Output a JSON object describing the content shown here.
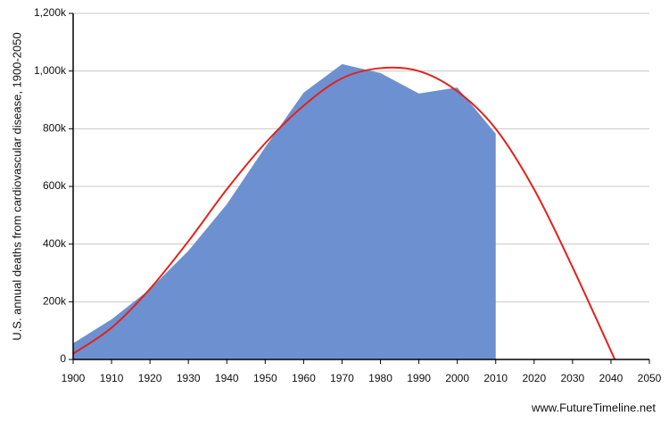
{
  "chart_data": {
    "type": "area",
    "ylabel": "U.S. annual deaths from cardiovascular disease, 1900-2050",
    "footer": "www.FutureTimeline.net",
    "xlim": [
      1900,
      2050
    ],
    "xticks": [
      1900,
      1910,
      1920,
      1930,
      1940,
      1950,
      1960,
      1970,
      1980,
      1990,
      2000,
      2010,
      2020,
      2030,
      2040,
      2050
    ],
    "ylim": [
      0,
      1200000
    ],
    "yticks": [
      0,
      {
        "value": 200000,
        "label": "200k"
      },
      {
        "value": 400000,
        "label": "400k"
      },
      {
        "value": 600000,
        "label": "600k"
      },
      {
        "value": 800000,
        "label": "800k"
      },
      {
        "value": 1000000,
        "label": "1,000k"
      },
      {
        "value": 1200000,
        "label": "1,200k"
      }
    ],
    "grid": true,
    "series": [
      {
        "type": "area",
        "color": "#6d91d0",
        "x": [
          1900,
          1910,
          1920,
          1930,
          1940,
          1950,
          1960,
          1970,
          1980,
          1990,
          2000,
          2010
        ],
        "values": [
          56000,
          139000,
          244000,
          377000,
          538000,
          736000,
          925000,
          1024000,
          993000,
          922000,
          943000,
          783000
        ]
      },
      {
        "type": "line",
        "color": "#e3211c",
        "x": [
          1900,
          1910,
          1920,
          1930,
          1940,
          1950,
          1960,
          1970,
          1980,
          1990,
          2000,
          2010,
          2020,
          2030,
          2041
        ],
        "values": [
          20000,
          110000,
          245000,
          410000,
          590000,
          750000,
          880000,
          975000,
          1010000,
          1000000,
          930000,
          800000,
          590000,
          320000,
          0
        ]
      }
    ]
  }
}
